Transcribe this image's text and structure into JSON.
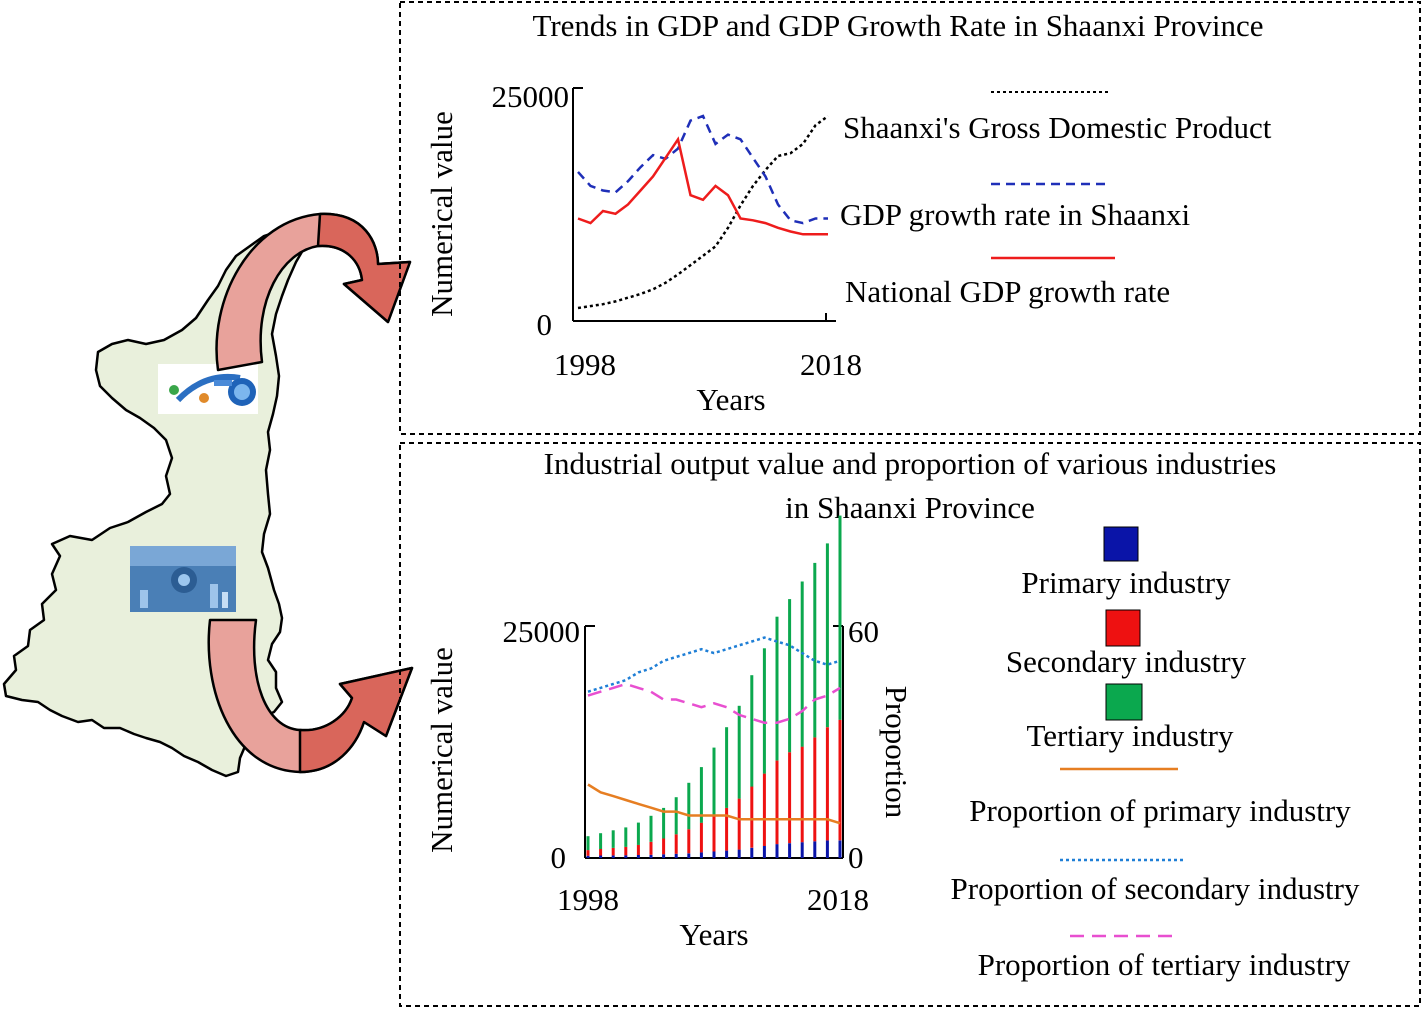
{
  "top_panel": {
    "title": "Trends in GDP and GDP Growth Rate in Shaanxi Province",
    "y_axis_label": "Numerical value",
    "x_axis_label": "Years",
    "y_ticks": [
      "25000",
      "0"
    ],
    "x_ticks": [
      "1998",
      "2018"
    ],
    "legend": [
      {
        "label": "Shaanxi's Gross Domestic Product",
        "color": "#000000",
        "style": "dotted"
      },
      {
        "label": "GDP growth rate in Shaanxi",
        "color": "#1f2fb8",
        "style": "dashed"
      },
      {
        "label": "National GDP growth rate",
        "color": "#ee1c1c",
        "style": "solid"
      }
    ]
  },
  "bottom_panel": {
    "title_line1": "Industrial output value and proportion of various industries",
    "title_line2": "in Shaanxi Province",
    "y_axis_label": "Numerical value",
    "y2_axis_label": "Proportion",
    "x_axis_label": "Years",
    "y_ticks": [
      "25000",
      "0"
    ],
    "y2_ticks": [
      "60",
      "0"
    ],
    "x_ticks": [
      "1998",
      "2018"
    ],
    "legend": [
      {
        "label": "Primary industry",
        "color": "#0a14a8",
        "style": "box"
      },
      {
        "label": "Secondary industry",
        "color": "#ee1111",
        "style": "box"
      },
      {
        "label": "Tertiary industry",
        "color": "#0ba84e",
        "style": "box"
      },
      {
        "label": "Proportion of primary industry",
        "color": "#e67e22",
        "style": "solid"
      },
      {
        "label": "Proportion of secondary industry",
        "color": "#1f7fd6",
        "style": "dotted"
      },
      {
        "label": "Proportion of tertiary industry",
        "color": "#e84fd0",
        "style": "dashed"
      }
    ]
  },
  "colors": {
    "map_fill": "#e9f0dc",
    "arrow_fill": "#d9665b",
    "arrow_light": "#e8a29b"
  },
  "chart_data": [
    {
      "type": "line",
      "title": "Trends in GDP and GDP Growth Rate in Shaanxi Province",
      "xlabel": "Years",
      "ylabel": "Numerical value",
      "ylim": [
        0,
        25000
      ],
      "x": [
        1998,
        1999,
        2000,
        2001,
        2002,
        2003,
        2004,
        2005,
        2006,
        2007,
        2008,
        2009,
        2010,
        2011,
        2012,
        2013,
        2014,
        2015,
        2016,
        2017,
        2018
      ],
      "series": [
        {
          "name": "Shaanxi's Gross Domestic Product",
          "color": "#000000",
          "dash": "3 3",
          "values": [
            1400,
            1600,
            1800,
            2100,
            2500,
            2900,
            3400,
            4100,
            5000,
            6000,
            7000,
            8000,
            10000,
            12400,
            14500,
            16200,
            17700,
            18000,
            19000,
            21000,
            22000
          ]
        },
        {
          "name": "GDP growth rate in Shaanxi",
          "color": "#1f2fb8",
          "dash": "9 6",
          "values": [
            16000,
            14500,
            14000,
            13800,
            15000,
            16500,
            17800,
            17400,
            18500,
            21500,
            22000,
            19000,
            20000,
            19500,
            17500,
            15500,
            12500,
            10800,
            10500,
            11000,
            11000
          ]
        },
        {
          "name": "National GDP growth rate",
          "color": "#ee1c1c",
          "dash": "",
          "values": [
            11000,
            10500,
            11800,
            11500,
            12500,
            14000,
            15500,
            17500,
            19500,
            13500,
            13000,
            14500,
            13500,
            11000,
            10800,
            10500,
            10000,
            9600,
            9300,
            9300,
            9300
          ]
        }
      ]
    },
    {
      "type": "bar",
      "title": "Industrial output value and proportion of various industries in Shaanxi Province",
      "xlabel": "Years",
      "ylabel": "Numerical value",
      "y2label": "Proportion",
      "ylim": [
        0,
        25000
      ],
      "y2lim": [
        0,
        60
      ],
      "x": [
        1998,
        1999,
        2000,
        2001,
        2002,
        2003,
        2004,
        2005,
        2006,
        2007,
        2008,
        2009,
        2010,
        2011,
        2012,
        2013,
        2014,
        2015,
        2016,
        2017,
        2018
      ],
      "bar_series": [
        {
          "name": "Primary industry",
          "color": "#0a14a8",
          "values": [
            250,
            270,
            280,
            300,
            320,
            350,
            400,
            450,
            500,
            600,
            700,
            800,
            900,
            1100,
            1300,
            1500,
            1600,
            1700,
            1800,
            1900,
            1900
          ]
        },
        {
          "name": "Secondary industry",
          "color": "#ee1111",
          "values": [
            600,
            700,
            800,
            900,
            1100,
            1400,
            1700,
            2100,
            2600,
            3200,
            3900,
            4600,
            5500,
            6600,
            7800,
            9000,
            9800,
            10300,
            11200,
            12200,
            13000
          ]
        },
        {
          "name": "Tertiary industry",
          "color": "#0ba84e",
          "values": [
            1500,
            1700,
            1900,
            2100,
            2400,
            2800,
            3300,
            4000,
            5000,
            6000,
            7300,
            8700,
            10000,
            12000,
            13500,
            15500,
            16500,
            17800,
            18800,
            19800,
            22000
          ]
        }
      ],
      "line_series": [
        {
          "name": "Proportion of primary industry",
          "color": "#e67e22",
          "dash": "",
          "values": [
            19,
            17,
            16,
            15,
            14,
            13,
            12,
            12,
            11,
            11,
            11,
            11,
            10,
            10,
            10,
            10,
            10,
            10,
            10,
            10,
            9
          ]
        },
        {
          "name": "Proportion of secondary industry",
          "color": "#1f7fd6",
          "dash": "3 3",
          "values": [
            43,
            44,
            45,
            46,
            48,
            49,
            51,
            52,
            53,
            54,
            53,
            54,
            55,
            56,
            57,
            56,
            55,
            53,
            51,
            50,
            51
          ]
        },
        {
          "name": "Proportion of tertiary industry",
          "color": "#e84fd0",
          "dash": "14 8",
          "values": [
            42,
            43,
            44,
            45,
            44,
            43,
            41,
            41,
            40,
            39,
            40,
            39,
            37,
            36,
            35,
            35,
            36,
            38,
            41,
            42,
            44
          ]
        }
      ]
    }
  ]
}
